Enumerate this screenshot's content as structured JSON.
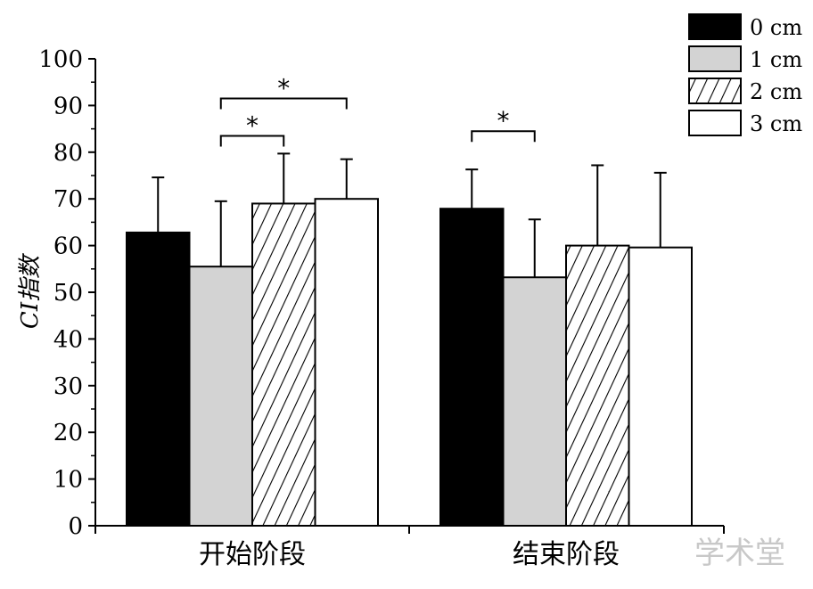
{
  "chart_data": {
    "type": "bar",
    "ylabel": "CI指数",
    "ylim": [
      0,
      100
    ],
    "yticks": [
      0,
      10,
      20,
      30,
      40,
      50,
      60,
      70,
      80,
      90,
      100
    ],
    "categories": [
      "开始阶段",
      "结束阶段"
    ],
    "series": [
      {
        "name": "0 cm",
        "values": [
          62.8,
          67.9
        ],
        "errors": [
          11.8,
          8.4
        ],
        "fill": "#000000",
        "pattern": "solid"
      },
      {
        "name": "1 cm",
        "values": [
          55.5,
          53.2
        ],
        "errors": [
          14.0,
          12.4
        ],
        "fill": "#d3d3d3",
        "pattern": "solid"
      },
      {
        "name": "2 cm",
        "values": [
          69.0,
          60.0
        ],
        "errors": [
          10.7,
          17.2
        ],
        "fill": "#ffffff",
        "pattern": "diagonal-hatch"
      },
      {
        "name": "3 cm",
        "values": [
          70.0,
          59.6
        ],
        "errors": [
          8.5,
          16.0
        ],
        "fill": "#ffffff",
        "pattern": "solid"
      }
    ],
    "significance": [
      {
        "category": 0,
        "from_series": 1,
        "to_series": 2,
        "y": 83.5,
        "label": "*"
      },
      {
        "category": 0,
        "from_series": 1,
        "to_series": 3,
        "y": 91.5,
        "label": "*"
      },
      {
        "category": 1,
        "from_series": 0,
        "to_series": 1,
        "y": 84.5,
        "label": "*"
      }
    ],
    "legend_position": "top-right"
  },
  "watermark": {
    "text": "学术堂"
  }
}
